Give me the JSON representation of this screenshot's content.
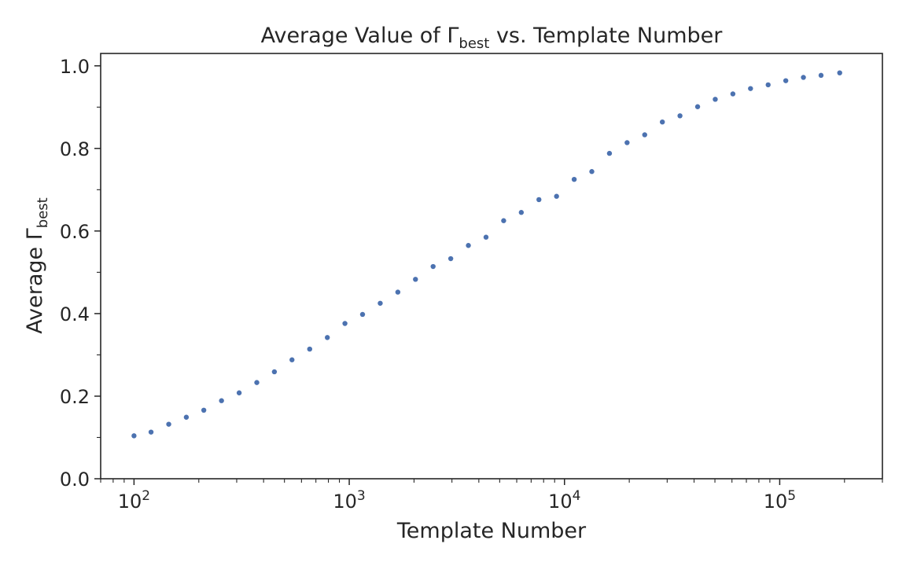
{
  "chart_data": {
    "type": "scatter",
    "title": {
      "prefix": "Average Value of Γ",
      "subscript": "best",
      "suffix": " vs. Template Number"
    },
    "xlabel": "Template Number",
    "ylabel": {
      "prefix": "Average Γ",
      "subscript": "best"
    },
    "xscale": "log",
    "xlim": [
      70,
      300000
    ],
    "ylim": [
      0.0,
      1.03
    ],
    "x_major_ticks": [
      {
        "value": 100,
        "base": "10",
        "exp": "2"
      },
      {
        "value": 1000,
        "base": "10",
        "exp": "3"
      },
      {
        "value": 10000,
        "base": "10",
        "exp": "4"
      },
      {
        "value": 100000,
        "base": "10",
        "exp": "5"
      }
    ],
    "y_major_ticks": [
      {
        "value": 0.0,
        "label": "0.0"
      },
      {
        "value": 0.2,
        "label": "0.2"
      },
      {
        "value": 0.4,
        "label": "0.4"
      },
      {
        "value": 0.6,
        "label": "0.6"
      },
      {
        "value": 0.8,
        "label": "0.8"
      },
      {
        "value": 1.0,
        "label": "1.0"
      }
    ],
    "y_minor_ticks": [
      0.1,
      0.3,
      0.5,
      0.7,
      0.9
    ],
    "grid": false,
    "marker_color": "#4c72b0",
    "points": [
      [
        100,
        0.104
      ],
      [
        120,
        0.113
      ],
      [
        145,
        0.132
      ],
      [
        175,
        0.149
      ],
      [
        211,
        0.166
      ],
      [
        255,
        0.189
      ],
      [
        308,
        0.208
      ],
      [
        372,
        0.233
      ],
      [
        449,
        0.259
      ],
      [
        542,
        0.288
      ],
      [
        655,
        0.314
      ],
      [
        791,
        0.342
      ],
      [
        955,
        0.376
      ],
      [
        1153,
        0.398
      ],
      [
        1393,
        0.425
      ],
      [
        1682,
        0.452
      ],
      [
        2031,
        0.483
      ],
      [
        2453,
        0.514
      ],
      [
        2962,
        0.533
      ],
      [
        3577,
        0.565
      ],
      [
        4320,
        0.585
      ],
      [
        5217,
        0.625
      ],
      [
        6300,
        0.645
      ],
      [
        7608,
        0.676
      ],
      [
        9187,
        0.684
      ],
      [
        11094,
        0.725
      ],
      [
        13397,
        0.744
      ],
      [
        16179,
        0.788
      ],
      [
        19538,
        0.814
      ],
      [
        23594,
        0.833
      ],
      [
        28492,
        0.864
      ],
      [
        34407,
        0.879
      ],
      [
        41550,
        0.901
      ],
      [
        50177,
        0.919
      ],
      [
        60594,
        0.932
      ],
      [
        73174,
        0.945
      ],
      [
        88365,
        0.954
      ],
      [
        106710,
        0.964
      ],
      [
        128864,
        0.972
      ],
      [
        155617,
        0.977
      ],
      [
        190000,
        0.983
      ]
    ]
  }
}
